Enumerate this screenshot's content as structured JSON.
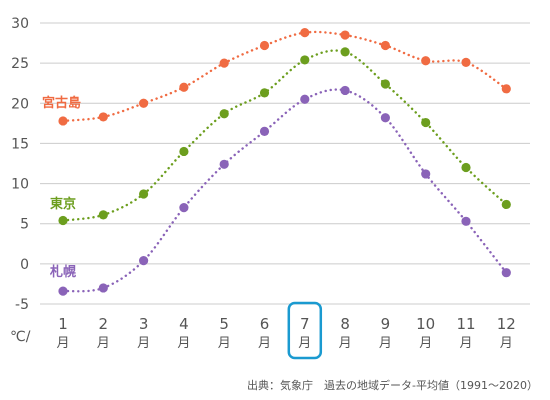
{
  "chart_data": {
    "type": "line",
    "title": "",
    "xlabel": "",
    "ylabel": "",
    "unit_label": "℃/",
    "month_suffix": "月",
    "categories": [
      "1",
      "2",
      "3",
      "4",
      "5",
      "6",
      "7",
      "8",
      "9",
      "10",
      "11",
      "12"
    ],
    "highlight_category": "7",
    "ylim": [
      -5,
      30
    ],
    "yticks": [
      -5,
      0,
      5,
      10,
      15,
      20,
      25,
      30
    ],
    "grid": "horizontal",
    "line_style": "dotted",
    "series": [
      {
        "name": "宮古島",
        "color": "#f06b42",
        "values": [
          17.8,
          18.3,
          20.0,
          22.0,
          25.0,
          27.2,
          28.8,
          28.5,
          27.2,
          25.3,
          25.1,
          21.8
        ]
      },
      {
        "name": "東京",
        "color": "#6c9e1e",
        "values": [
          5.4,
          6.1,
          8.7,
          14.0,
          18.7,
          21.3,
          25.4,
          26.4,
          22.4,
          17.6,
          12.0,
          7.4
        ]
      },
      {
        "name": "札幌",
        "color": "#8a63b8",
        "values": [
          -3.4,
          -3.0,
          0.4,
          7.0,
          12.4,
          16.5,
          20.5,
          21.6,
          18.2,
          11.2,
          5.3,
          -1.1
        ]
      }
    ]
  },
  "source": "出典：気象庁　過去の地域データ-平均値（1991〜2020）",
  "colors": {
    "grid": "#cccccc",
    "highlight": "#1a9ad0",
    "text": "#555555"
  }
}
